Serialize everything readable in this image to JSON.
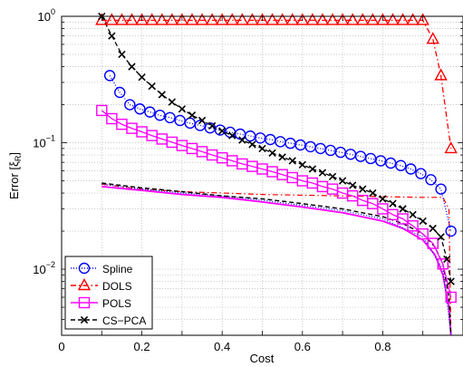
{
  "chart_data": {
    "type": "line",
    "xlabel": "Cost",
    "ylabel": "Error [ξ",
    "ylabel_sub": "R",
    "ylabel_end": "]",
    "xlim": [
      0,
      1
    ],
    "ylim": [
      0.003,
      1
    ],
    "yscale": "log",
    "grid": true,
    "legend_position": "bottom-left",
    "x_ticks": [
      {
        "value": 0,
        "label": "0"
      },
      {
        "value": 0.2,
        "label": "0.2"
      },
      {
        "value": 0.4,
        "label": "0.4"
      },
      {
        "value": 0.6,
        "label": "0.6"
      },
      {
        "value": 0.8,
        "label": "0.8"
      }
    ],
    "y_ticks": [
      {
        "value": 0.01,
        "base": "10",
        "exp": "−2"
      },
      {
        "value": 0.1,
        "base": "10",
        "exp": "−1"
      },
      {
        "value": 1,
        "base": "10",
        "exp": "0"
      }
    ],
    "series": [
      {
        "name": "Spline",
        "color": "#0000ff",
        "marker": "circle",
        "dash": "1,2",
        "points": [
          [
            0.12,
            0.34
          ],
          [
            0.145,
            0.25
          ],
          [
            0.17,
            0.2
          ],
          [
            0.195,
            0.185
          ],
          [
            0.22,
            0.175
          ],
          [
            0.245,
            0.165
          ],
          [
            0.27,
            0.158
          ],
          [
            0.295,
            0.15
          ],
          [
            0.32,
            0.143
          ],
          [
            0.345,
            0.137
          ],
          [
            0.37,
            0.131
          ],
          [
            0.395,
            0.126
          ],
          [
            0.42,
            0.121
          ],
          [
            0.445,
            0.117
          ],
          [
            0.47,
            0.113
          ],
          [
            0.495,
            0.109
          ],
          [
            0.52,
            0.106
          ],
          [
            0.545,
            0.102
          ],
          [
            0.57,
            0.099
          ],
          [
            0.595,
            0.096
          ],
          [
            0.62,
            0.093
          ],
          [
            0.645,
            0.09
          ],
          [
            0.67,
            0.087
          ],
          [
            0.695,
            0.084
          ],
          [
            0.72,
            0.081
          ],
          [
            0.745,
            0.078
          ],
          [
            0.77,
            0.075
          ],
          [
            0.795,
            0.072
          ],
          [
            0.82,
            0.069
          ],
          [
            0.845,
            0.066
          ],
          [
            0.87,
            0.062
          ],
          [
            0.895,
            0.057
          ],
          [
            0.92,
            0.051
          ],
          [
            0.945,
            0.043
          ],
          [
            0.97,
            0.02
          ]
        ]
      },
      {
        "name": "DOLS",
        "color": "#ff0000",
        "marker": "triangle",
        "dash": "6,3,1.5,3",
        "points": [
          [
            0.1,
            0.93
          ],
          [
            0.125,
            0.93
          ],
          [
            0.15,
            0.93
          ],
          [
            0.175,
            0.93
          ],
          [
            0.2,
            0.93
          ],
          [
            0.225,
            0.93
          ],
          [
            0.25,
            0.93
          ],
          [
            0.275,
            0.93
          ],
          [
            0.3,
            0.93
          ],
          [
            0.325,
            0.93
          ],
          [
            0.35,
            0.93
          ],
          [
            0.375,
            0.93
          ],
          [
            0.4,
            0.93
          ],
          [
            0.425,
            0.93
          ],
          [
            0.45,
            0.93
          ],
          [
            0.475,
            0.93
          ],
          [
            0.5,
            0.93
          ],
          [
            0.525,
            0.93
          ],
          [
            0.55,
            0.93
          ],
          [
            0.575,
            0.93
          ],
          [
            0.6,
            0.93
          ],
          [
            0.625,
            0.93
          ],
          [
            0.65,
            0.93
          ],
          [
            0.675,
            0.93
          ],
          [
            0.7,
            0.93
          ],
          [
            0.725,
            0.93
          ],
          [
            0.75,
            0.93
          ],
          [
            0.775,
            0.93
          ],
          [
            0.8,
            0.93
          ],
          [
            0.825,
            0.93
          ],
          [
            0.85,
            0.93
          ],
          [
            0.875,
            0.93
          ],
          [
            0.9,
            0.93
          ],
          [
            0.925,
            0.66
          ],
          [
            0.945,
            0.34
          ],
          [
            0.97,
            0.09
          ]
        ]
      },
      {
        "name": "POLS",
        "color": "#ff00ff",
        "marker": "square",
        "dash": "",
        "points": [
          [
            0.1,
            0.18
          ],
          [
            0.125,
            0.155
          ],
          [
            0.15,
            0.14
          ],
          [
            0.175,
            0.13
          ],
          [
            0.2,
            0.122
          ],
          [
            0.225,
            0.114
          ],
          [
            0.25,
            0.107
          ],
          [
            0.275,
            0.101
          ],
          [
            0.3,
            0.095
          ],
          [
            0.325,
            0.09
          ],
          [
            0.35,
            0.085
          ],
          [
            0.375,
            0.08
          ],
          [
            0.4,
            0.076
          ],
          [
            0.425,
            0.072
          ],
          [
            0.45,
            0.068
          ],
          [
            0.475,
            0.065
          ],
          [
            0.5,
            0.062
          ],
          [
            0.525,
            0.059
          ],
          [
            0.55,
            0.056
          ],
          [
            0.575,
            0.053
          ],
          [
            0.6,
            0.05
          ],
          [
            0.625,
            0.048
          ],
          [
            0.65,
            0.045
          ],
          [
            0.675,
            0.043
          ],
          [
            0.7,
            0.04
          ],
          [
            0.725,
            0.038
          ],
          [
            0.75,
            0.035
          ],
          [
            0.775,
            0.033
          ],
          [
            0.8,
            0.03
          ],
          [
            0.825,
            0.027
          ],
          [
            0.85,
            0.025
          ],
          [
            0.875,
            0.022
          ],
          [
            0.9,
            0.019
          ],
          [
            0.925,
            0.016
          ],
          [
            0.95,
            0.011
          ],
          [
            0.97,
            0.006
          ]
        ]
      },
      {
        "name": "CS−PCA",
        "color": "#000000",
        "marker": "x",
        "dash": "5,3",
        "points": [
          [
            0.1,
            1.0
          ],
          [
            0.125,
            0.7
          ],
          [
            0.15,
            0.5
          ],
          [
            0.175,
            0.4
          ],
          [
            0.2,
            0.33
          ],
          [
            0.225,
            0.28
          ],
          [
            0.25,
            0.24
          ],
          [
            0.275,
            0.21
          ],
          [
            0.3,
            0.185
          ],
          [
            0.325,
            0.165
          ],
          [
            0.35,
            0.15
          ],
          [
            0.375,
            0.136
          ],
          [
            0.4,
            0.124
          ],
          [
            0.425,
            0.114
          ],
          [
            0.45,
            0.105
          ],
          [
            0.475,
            0.097
          ],
          [
            0.5,
            0.09
          ],
          [
            0.525,
            0.083
          ],
          [
            0.55,
            0.077
          ],
          [
            0.575,
            0.072
          ],
          [
            0.6,
            0.067
          ],
          [
            0.625,
            0.062
          ],
          [
            0.65,
            0.058
          ],
          [
            0.675,
            0.054
          ],
          [
            0.7,
            0.05
          ],
          [
            0.725,
            0.046
          ],
          [
            0.75,
            0.043
          ],
          [
            0.775,
            0.04
          ],
          [
            0.8,
            0.036
          ],
          [
            0.825,
            0.033
          ],
          [
            0.85,
            0.03
          ],
          [
            0.875,
            0.027
          ],
          [
            0.9,
            0.024
          ],
          [
            0.925,
            0.021
          ],
          [
            0.945,
            0.018
          ],
          [
            0.96,
            0.012
          ],
          [
            0.97,
            0.008
          ]
        ]
      }
    ],
    "reference_curves": [
      {
        "color": "#ff0000",
        "dash": "6,3,1.5,3",
        "width": 1.2,
        "points": [
          [
            0.1,
            0.047
          ],
          [
            0.2,
            0.043
          ],
          [
            0.3,
            0.041
          ],
          [
            0.4,
            0.04
          ],
          [
            0.5,
            0.039
          ],
          [
            0.6,
            0.0385
          ],
          [
            0.7,
            0.038
          ],
          [
            0.8,
            0.0375
          ],
          [
            0.9,
            0.037
          ],
          [
            0.95,
            0.037
          ],
          [
            0.965,
            0.03
          ],
          [
            0.97,
            0.003
          ]
        ]
      },
      {
        "color": "#ff00ff",
        "dash": "",
        "width": 1.8,
        "points": [
          [
            0.1,
            0.045
          ],
          [
            0.2,
            0.042
          ],
          [
            0.3,
            0.039
          ],
          [
            0.4,
            0.037
          ],
          [
            0.5,
            0.034
          ],
          [
            0.6,
            0.031
          ],
          [
            0.7,
            0.028
          ],
          [
            0.8,
            0.024
          ],
          [
            0.85,
            0.021
          ],
          [
            0.9,
            0.017
          ],
          [
            0.93,
            0.013
          ],
          [
            0.95,
            0.009
          ],
          [
            0.965,
            0.005
          ],
          [
            0.97,
            0.003
          ]
        ]
      },
      {
        "color": "#0000ff",
        "dash": "1,2",
        "width": 1.2,
        "points": [
          [
            0.1,
            0.047
          ],
          [
            0.2,
            0.043
          ],
          [
            0.3,
            0.04
          ],
          [
            0.4,
            0.038
          ],
          [
            0.5,
            0.035
          ],
          [
            0.6,
            0.032
          ],
          [
            0.7,
            0.029
          ],
          [
            0.8,
            0.025
          ],
          [
            0.9,
            0.018
          ],
          [
            0.95,
            0.01
          ],
          [
            0.97,
            0.003
          ]
        ]
      },
      {
        "color": "#000000",
        "dash": "5,3",
        "width": 1.4,
        "points": [
          [
            0.1,
            0.048
          ],
          [
            0.2,
            0.044
          ],
          [
            0.3,
            0.041
          ],
          [
            0.4,
            0.038
          ],
          [
            0.5,
            0.036
          ],
          [
            0.6,
            0.033
          ],
          [
            0.7,
            0.03
          ],
          [
            0.8,
            0.026
          ],
          [
            0.85,
            0.023
          ],
          [
            0.9,
            0.019
          ],
          [
            0.93,
            0.015
          ],
          [
            0.95,
            0.011
          ],
          [
            0.965,
            0.006
          ],
          [
            0.97,
            0.003
          ]
        ]
      }
    ]
  }
}
